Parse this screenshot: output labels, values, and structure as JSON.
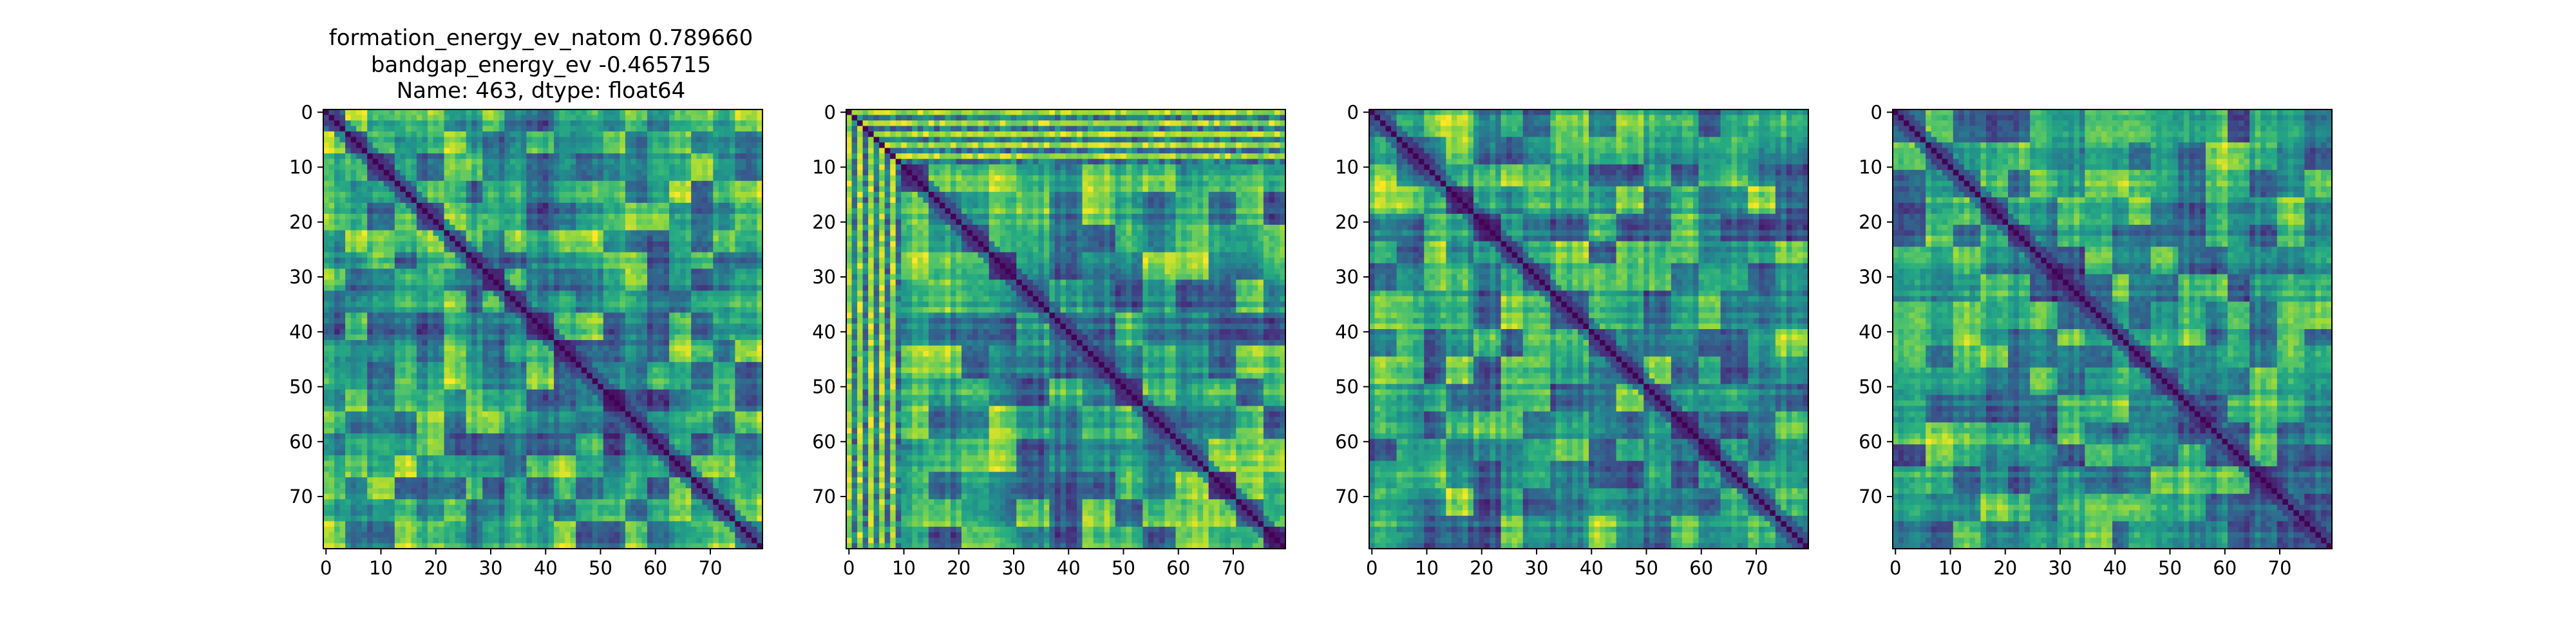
{
  "figure": {
    "title_lines": [
      "formation_energy_ev_natom    0.789660",
      "bandgap_energy_ev           -0.465715",
      "Name: 463, dtype: float64"
    ]
  },
  "chart_data": [
    {
      "type": "heatmap",
      "matrix_size": 80,
      "colormap": "viridis",
      "xlim": [
        0,
        79
      ],
      "ylim": [
        79,
        0
      ],
      "xticks": [
        "0",
        "10",
        "20",
        "30",
        "40",
        "50",
        "60",
        "70"
      ],
      "yticks": [
        "0",
        "10",
        "20",
        "30",
        "40",
        "50",
        "60",
        "70"
      ],
      "diagonal_value": 0,
      "values": "pairwise distance matrix, values estimated from colour"
    },
    {
      "type": "heatmap",
      "matrix_size": 80,
      "colormap": "viridis",
      "xlim": [
        0,
        79
      ],
      "ylim": [
        79,
        0
      ],
      "xticks": [
        "0",
        "10",
        "20",
        "30",
        "40",
        "50",
        "60",
        "70"
      ],
      "yticks": [
        "0",
        "10",
        "20",
        "30",
        "40",
        "50",
        "60",
        "70"
      ],
      "diagonal_value": 0,
      "values": "pairwise distance matrix, values estimated from colour"
    },
    {
      "type": "heatmap",
      "matrix_size": 80,
      "colormap": "viridis",
      "xlim": [
        0,
        79
      ],
      "ylim": [
        79,
        0
      ],
      "xticks": [
        "0",
        "10",
        "20",
        "30",
        "40",
        "50",
        "60",
        "70"
      ],
      "yticks": [
        "0",
        "10",
        "20",
        "30",
        "40",
        "50",
        "60",
        "70"
      ],
      "diagonal_value": 0,
      "values": "pairwise distance matrix, values estimated from colour"
    },
    {
      "type": "heatmap",
      "matrix_size": 80,
      "colormap": "viridis",
      "xlim": [
        0,
        79
      ],
      "ylim": [
        79,
        0
      ],
      "xticks": [
        "0",
        "10",
        "20",
        "30",
        "40",
        "50",
        "60",
        "70"
      ],
      "yticks": [
        "0",
        "10",
        "20",
        "30",
        "40",
        "50",
        "60",
        "70"
      ],
      "diagonal_value": 0,
      "values": "pairwise distance matrix, values estimated from colour"
    }
  ]
}
